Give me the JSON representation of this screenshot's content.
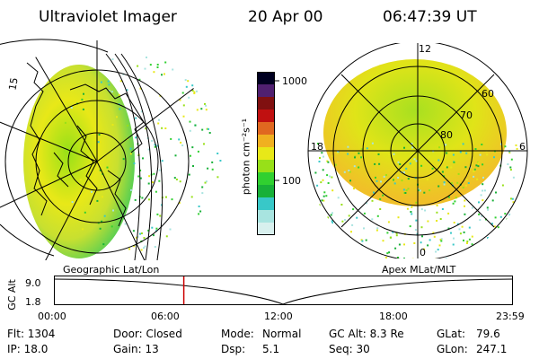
{
  "header": {
    "instrument": "Ultraviolet Imager",
    "date": "20 Apr 00",
    "time": "06:47:39 UT"
  },
  "left_panel": {
    "grid_labels": [
      "15"
    ]
  },
  "colorbar": {
    "unit_label": "photon cm⁻²s⁻¹",
    "ticks": [
      "1000",
      "100"
    ],
    "colors": [
      "#d8f0ee",
      "#a8e4e0",
      "#38c8c8",
      "#18b038",
      "#30d030",
      "#98e018",
      "#e8e818",
      "#f0b020",
      "#e06820",
      "#c01010",
      "#801010",
      "#502070",
      "#000020"
    ]
  },
  "right_panel": {
    "clock_labels": [
      "12",
      "18",
      "6",
      "0"
    ],
    "lat_labels": [
      "60",
      "70",
      "80"
    ]
  },
  "timeline": {
    "left_title": "Geographic Lat/Lon",
    "right_title": "Apex MLat/MLT",
    "axis_label": "GC Alt",
    "y_ticks": [
      "9.0",
      "1.8"
    ],
    "x_ticks": [
      "00:00",
      "06:00",
      "12:00",
      "18:00",
      "23:59"
    ],
    "current_time_hours": 6.79,
    "marker_color": "#cc0000"
  },
  "info": {
    "row1": {
      "flt": "Flt: 1304",
      "door": "Door: Closed",
      "mode_label": "Mode:",
      "mode_value": "Normal",
      "gcalt": "GC Alt: 8.3 Re",
      "glat_label": "GLat:",
      "glat_value": "79.6"
    },
    "row2": {
      "ip": "IP: 18.0",
      "gain": "Gain: 13",
      "dsp_label": "Dsp:",
      "dsp_value": "5.1",
      "seq": "Seq: 30",
      "glon_label": "GLon:",
      "glon_value": "247.1"
    }
  }
}
